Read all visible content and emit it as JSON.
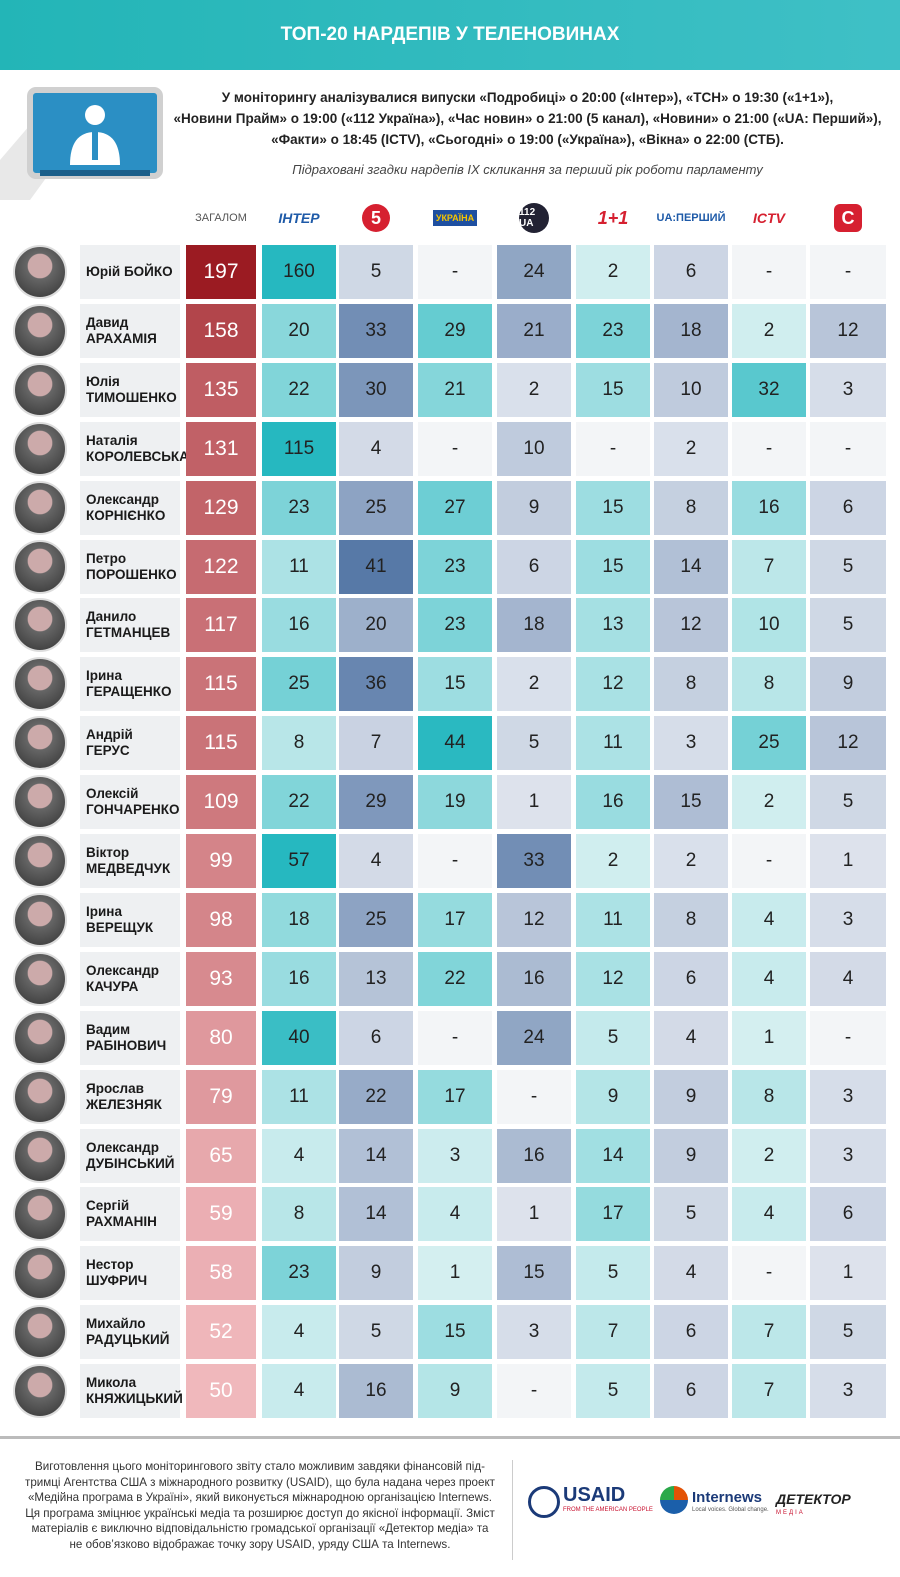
{
  "header": {
    "title": "ТОП-20 НАРДЕПІВ У ТЕЛЕНОВИНАХ"
  },
  "intro": {
    "lines": [
      "У моніторингу аналізувалися випуски «Подробиці» о 20:00 («Інтер»), «ТСН» о 19:30 («1+1»),",
      "«Новини Прайм» о 19:00 («112 Україна»), «Час новин» о 21:00 (5 канал), «Новини» о 21:00 («UA: Перший»),",
      "«Факти» о 18:45 (ICTV), «Сьогодні» о 19:00 («Україна»), «Вікна» о 22:00 (СТБ)."
    ],
    "note": "Підраховані згадки нардепів IX скликання за перший рік роботи парламенту"
  },
  "table": {
    "columns": [
      "ЗАГАЛОМ",
      "ІНТЕР",
      "5",
      "УКРАЇНА",
      "112 UA",
      "1+1",
      "UA:ПЕРШИЙ",
      "ICTV",
      "С"
    ],
    "rows": [
      {
        "name": [
          "Юрій БОЙКО"
        ],
        "values": [
          197,
          160,
          5,
          "-",
          24,
          2,
          6,
          "-",
          "-"
        ]
      },
      {
        "name": [
          "Давид",
          "АРАХАМІЯ"
        ],
        "values": [
          158,
          20,
          33,
          29,
          21,
          23,
          18,
          2,
          12
        ]
      },
      {
        "name": [
          "Юлія",
          "ТИМОШЕНКО"
        ],
        "values": [
          135,
          22,
          30,
          21,
          2,
          15,
          10,
          32,
          3
        ]
      },
      {
        "name": [
          "Наталія",
          "КОРОЛЕВСЬКА"
        ],
        "values": [
          131,
          115,
          4,
          "-",
          10,
          "-",
          2,
          "-",
          "-"
        ]
      },
      {
        "name": [
          "Олександр",
          "КОРНІЄНКО"
        ],
        "values": [
          129,
          23,
          25,
          27,
          9,
          15,
          8,
          16,
          6
        ]
      },
      {
        "name": [
          "Петро",
          "ПОРОШЕНКО"
        ],
        "values": [
          122,
          11,
          41,
          23,
          6,
          15,
          14,
          7,
          5
        ]
      },
      {
        "name": [
          "Данило",
          "ГЕТМАНЦЕВ"
        ],
        "values": [
          117,
          16,
          20,
          23,
          18,
          13,
          12,
          10,
          5
        ]
      },
      {
        "name": [
          "Ірина",
          "ГЕРАЩЕНКО"
        ],
        "values": [
          115,
          25,
          36,
          15,
          2,
          12,
          8,
          8,
          9
        ]
      },
      {
        "name": [
          "Андрій ГЕРУС"
        ],
        "values": [
          115,
          8,
          7,
          44,
          5,
          11,
          3,
          25,
          12
        ]
      },
      {
        "name": [
          "Олексій",
          "ГОНЧАРЕНКО"
        ],
        "values": [
          109,
          22,
          29,
          19,
          1,
          16,
          15,
          2,
          5
        ]
      },
      {
        "name": [
          "Віктор",
          "МЕДВЕДЧУК"
        ],
        "values": [
          99,
          57,
          4,
          "-",
          33,
          2,
          2,
          "-",
          1
        ]
      },
      {
        "name": [
          "Ірина ВЕРЕЩУК"
        ],
        "values": [
          98,
          18,
          25,
          17,
          12,
          11,
          8,
          4,
          3
        ]
      },
      {
        "name": [
          "Олександр",
          "КАЧУРА"
        ],
        "values": [
          93,
          16,
          13,
          22,
          16,
          12,
          6,
          4,
          4
        ]
      },
      {
        "name": [
          "Вадим",
          "РАБІНОВИЧ"
        ],
        "values": [
          80,
          40,
          6,
          "-",
          24,
          5,
          4,
          1,
          "-"
        ]
      },
      {
        "name": [
          "Ярослав",
          "ЖЕЛЕЗНЯК"
        ],
        "values": [
          79,
          11,
          22,
          17,
          "-",
          9,
          9,
          8,
          3
        ]
      },
      {
        "name": [
          "Олександр",
          "ДУБІНСЬКИЙ"
        ],
        "values": [
          65,
          4,
          14,
          3,
          16,
          14,
          9,
          2,
          3
        ]
      },
      {
        "name": [
          "Сергій",
          "РАХМАНІН"
        ],
        "values": [
          59,
          8,
          14,
          4,
          1,
          17,
          5,
          4,
          6
        ]
      },
      {
        "name": [
          "Нестор ШУФРИЧ"
        ],
        "values": [
          58,
          23,
          9,
          1,
          15,
          5,
          4,
          "-",
          1
        ]
      },
      {
        "name": [
          "Михайло",
          "РАДУЦЬКИЙ"
        ],
        "values": [
          52,
          4,
          5,
          15,
          3,
          7,
          6,
          7,
          5
        ]
      },
      {
        "name": [
          "Микола",
          "КНЯЖИЦЬКИЙ"
        ],
        "values": [
          50,
          4,
          16,
          9,
          "-",
          5,
          6,
          7,
          3
        ]
      }
    ]
  },
  "footer": {
    "lines": [
      "Виготовлення цього моніторингового звіту стало можливим завдяки фінансовій під-",
      "тримці Агентства США з міжнародного розвитку (USAID), що була надана через проект",
      "«Медійна програма в Україні», який виконується міжнародною організацією Internews.",
      "Ця програма зміцнює українські медіа та розширює доступ до якісної інформації.  Зміст",
      "матеріалів є виключно відповідальністю громадської організації «Детектор медіа» та",
      "не обов’язково відображає точку зору USAID, уряду США та Internews."
    ],
    "logos": {
      "usaid": "USAID",
      "usaid_tag": "FROM THE AMERICAN PEOPLE",
      "internews": "Internews",
      "internews_tag": "Local voices. Global change.",
      "detector": "ДЕТЕКТОР",
      "detector_tag": "МЕДІА"
    }
  }
}
